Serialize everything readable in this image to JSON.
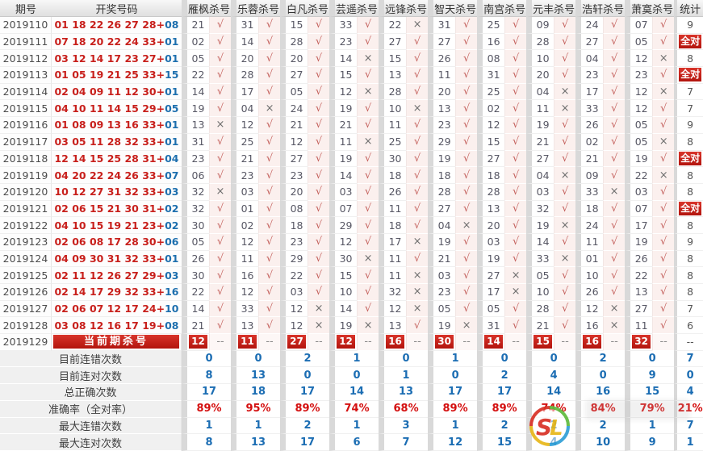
{
  "colors": {
    "accent_red": "#c8201c",
    "accent_blue": "#1b6db3",
    "percent_red": "#d40f0f",
    "check_pink_bg": "#fbf0ee",
    "gutter_gray": "#d9d9d9"
  },
  "marks": {
    "ok": "√",
    "bad": "×",
    "dash": "--",
    "plus": "+"
  },
  "badges": {
    "all_correct": "全对"
  },
  "table": {
    "headers": [
      "期号",
      "开奖号码",
      "雁枫杀号",
      "乐蓉杀号",
      "白凡杀号",
      "芸遥杀号",
      "远锋杀号",
      "智天杀号",
      "南宫杀号",
      "元丰杀号",
      "浩轩杀号",
      "萧寞杀号",
      "统计"
    ],
    "rows": [
      {
        "period": "2019110",
        "draw": {
          "main": "01 18 22 26 27 28",
          "blue": "08"
        },
        "kills": [
          {
            "n": "21",
            "r": "ok"
          },
          {
            "n": "31",
            "r": "ok"
          },
          {
            "n": "15",
            "r": "ok"
          },
          {
            "n": "33",
            "r": "ok"
          },
          {
            "n": "22",
            "r": "bad"
          },
          {
            "n": "31",
            "r": "ok"
          },
          {
            "n": "25",
            "r": "ok"
          },
          {
            "n": "09",
            "r": "ok"
          },
          {
            "n": "24",
            "r": "ok"
          },
          {
            "n": "07",
            "r": "ok"
          }
        ],
        "stat": "9"
      },
      {
        "period": "2019111",
        "draw": {
          "main": "07 18 20 22 24 33",
          "blue": "01"
        },
        "kills": [
          {
            "n": "02",
            "r": "ok"
          },
          {
            "n": "14",
            "r": "ok"
          },
          {
            "n": "28",
            "r": "ok"
          },
          {
            "n": "23",
            "r": "ok"
          },
          {
            "n": "27",
            "r": "ok"
          },
          {
            "n": "27",
            "r": "ok"
          },
          {
            "n": "16",
            "r": "ok"
          },
          {
            "n": "28",
            "r": "ok"
          },
          {
            "n": "27",
            "r": "ok"
          },
          {
            "n": "05",
            "r": "ok"
          }
        ],
        "stat": "全对"
      },
      {
        "period": "2019112",
        "draw": {
          "main": "03 12 14 17 23 27",
          "blue": "01"
        },
        "kills": [
          {
            "n": "05",
            "r": "ok"
          },
          {
            "n": "20",
            "r": "ok"
          },
          {
            "n": "20",
            "r": "ok"
          },
          {
            "n": "14",
            "r": "bad"
          },
          {
            "n": "15",
            "r": "ok"
          },
          {
            "n": "26",
            "r": "ok"
          },
          {
            "n": "08",
            "r": "ok"
          },
          {
            "n": "10",
            "r": "ok"
          },
          {
            "n": "04",
            "r": "ok"
          },
          {
            "n": "12",
            "r": "bad"
          }
        ],
        "stat": "8"
      },
      {
        "period": "2019113",
        "draw": {
          "main": "01 05 19 21 25 33",
          "blue": "15"
        },
        "kills": [
          {
            "n": "22",
            "r": "ok"
          },
          {
            "n": "28",
            "r": "ok"
          },
          {
            "n": "27",
            "r": "ok"
          },
          {
            "n": "15",
            "r": "ok"
          },
          {
            "n": "13",
            "r": "ok"
          },
          {
            "n": "11",
            "r": "ok"
          },
          {
            "n": "31",
            "r": "ok"
          },
          {
            "n": "20",
            "r": "ok"
          },
          {
            "n": "23",
            "r": "ok"
          },
          {
            "n": "23",
            "r": "ok"
          }
        ],
        "stat": "全对"
      },
      {
        "period": "2019114",
        "draw": {
          "main": "02 04 09 11 12 30",
          "blue": "01"
        },
        "kills": [
          {
            "n": "14",
            "r": "ok"
          },
          {
            "n": "17",
            "r": "ok"
          },
          {
            "n": "05",
            "r": "ok"
          },
          {
            "n": "12",
            "r": "bad"
          },
          {
            "n": "28",
            "r": "ok"
          },
          {
            "n": "20",
            "r": "ok"
          },
          {
            "n": "25",
            "r": "ok"
          },
          {
            "n": "04",
            "r": "bad"
          },
          {
            "n": "17",
            "r": "ok"
          },
          {
            "n": "12",
            "r": "bad"
          }
        ],
        "stat": "7"
      },
      {
        "period": "2019115",
        "draw": {
          "main": "04 10 11 14 15 29",
          "blue": "05"
        },
        "kills": [
          {
            "n": "19",
            "r": "ok"
          },
          {
            "n": "04",
            "r": "bad"
          },
          {
            "n": "24",
            "r": "ok"
          },
          {
            "n": "19",
            "r": "ok"
          },
          {
            "n": "10",
            "r": "bad"
          },
          {
            "n": "13",
            "r": "ok"
          },
          {
            "n": "02",
            "r": "ok"
          },
          {
            "n": "11",
            "r": "bad"
          },
          {
            "n": "33",
            "r": "ok"
          },
          {
            "n": "12",
            "r": "ok"
          }
        ],
        "stat": "7"
      },
      {
        "period": "2019116",
        "draw": {
          "main": "01 08 09 13 16 33",
          "blue": "01"
        },
        "kills": [
          {
            "n": "13",
            "r": "bad"
          },
          {
            "n": "12",
            "r": "ok"
          },
          {
            "n": "21",
            "r": "ok"
          },
          {
            "n": "21",
            "r": "ok"
          },
          {
            "n": "11",
            "r": "ok"
          },
          {
            "n": "23",
            "r": "ok"
          },
          {
            "n": "12",
            "r": "ok"
          },
          {
            "n": "19",
            "r": "ok"
          },
          {
            "n": "26",
            "r": "ok"
          },
          {
            "n": "05",
            "r": "ok"
          }
        ],
        "stat": "9"
      },
      {
        "period": "2019117",
        "draw": {
          "main": "03 05 11 28 32 33",
          "blue": "01"
        },
        "kills": [
          {
            "n": "31",
            "r": "ok"
          },
          {
            "n": "25",
            "r": "ok"
          },
          {
            "n": "12",
            "r": "ok"
          },
          {
            "n": "11",
            "r": "bad"
          },
          {
            "n": "25",
            "r": "ok"
          },
          {
            "n": "29",
            "r": "ok"
          },
          {
            "n": "15",
            "r": "ok"
          },
          {
            "n": "21",
            "r": "ok"
          },
          {
            "n": "02",
            "r": "ok"
          },
          {
            "n": "05",
            "r": "bad"
          }
        ],
        "stat": "8"
      },
      {
        "period": "2019118",
        "draw": {
          "main": "12 14 15 25 28 31",
          "blue": "04"
        },
        "kills": [
          {
            "n": "23",
            "r": "ok"
          },
          {
            "n": "21",
            "r": "ok"
          },
          {
            "n": "27",
            "r": "ok"
          },
          {
            "n": "19",
            "r": "ok"
          },
          {
            "n": "30",
            "r": "ok"
          },
          {
            "n": "19",
            "r": "ok"
          },
          {
            "n": "27",
            "r": "ok"
          },
          {
            "n": "27",
            "r": "ok"
          },
          {
            "n": "21",
            "r": "ok"
          },
          {
            "n": "19",
            "r": "ok"
          }
        ],
        "stat": "全对"
      },
      {
        "period": "2019119",
        "draw": {
          "main": "04 20 22 24 26 33",
          "blue": "07"
        },
        "kills": [
          {
            "n": "06",
            "r": "ok"
          },
          {
            "n": "23",
            "r": "ok"
          },
          {
            "n": "23",
            "r": "ok"
          },
          {
            "n": "14",
            "r": "ok"
          },
          {
            "n": "18",
            "r": "ok"
          },
          {
            "n": "18",
            "r": "ok"
          },
          {
            "n": "18",
            "r": "ok"
          },
          {
            "n": "04",
            "r": "bad"
          },
          {
            "n": "09",
            "r": "ok"
          },
          {
            "n": "22",
            "r": "bad"
          }
        ],
        "stat": "8"
      },
      {
        "period": "2019120",
        "draw": {
          "main": "10 12 27 31 32 33",
          "blue": "03"
        },
        "kills": [
          {
            "n": "32",
            "r": "bad"
          },
          {
            "n": "03",
            "r": "ok"
          },
          {
            "n": "20",
            "r": "ok"
          },
          {
            "n": "03",
            "r": "ok"
          },
          {
            "n": "26",
            "r": "ok"
          },
          {
            "n": "28",
            "r": "ok"
          },
          {
            "n": "28",
            "r": "ok"
          },
          {
            "n": "03",
            "r": "ok"
          },
          {
            "n": "33",
            "r": "bad"
          },
          {
            "n": "03",
            "r": "ok"
          }
        ],
        "stat": "8"
      },
      {
        "period": "2019121",
        "draw": {
          "main": "02 06 15 21 30 31",
          "blue": "02"
        },
        "kills": [
          {
            "n": "32",
            "r": "ok"
          },
          {
            "n": "01",
            "r": "ok"
          },
          {
            "n": "08",
            "r": "ok"
          },
          {
            "n": "07",
            "r": "ok"
          },
          {
            "n": "11",
            "r": "ok"
          },
          {
            "n": "27",
            "r": "ok"
          },
          {
            "n": "13",
            "r": "ok"
          },
          {
            "n": "32",
            "r": "ok"
          },
          {
            "n": "18",
            "r": "ok"
          },
          {
            "n": "07",
            "r": "ok"
          }
        ],
        "stat": "全对"
      },
      {
        "period": "2019122",
        "draw": {
          "main": "04 10 15 19 21 23",
          "blue": "02"
        },
        "kills": [
          {
            "n": "30",
            "r": "ok"
          },
          {
            "n": "02",
            "r": "ok"
          },
          {
            "n": "18",
            "r": "ok"
          },
          {
            "n": "29",
            "r": "ok"
          },
          {
            "n": "18",
            "r": "ok"
          },
          {
            "n": "04",
            "r": "bad"
          },
          {
            "n": "20",
            "r": "ok"
          },
          {
            "n": "19",
            "r": "bad"
          },
          {
            "n": "24",
            "r": "ok"
          },
          {
            "n": "17",
            "r": "ok"
          }
        ],
        "stat": "8"
      },
      {
        "period": "2019123",
        "draw": {
          "main": "02 06 08 17 28 30",
          "blue": "06"
        },
        "kills": [
          {
            "n": "05",
            "r": "ok"
          },
          {
            "n": "12",
            "r": "ok"
          },
          {
            "n": "23",
            "r": "ok"
          },
          {
            "n": "12",
            "r": "ok"
          },
          {
            "n": "17",
            "r": "bad"
          },
          {
            "n": "19",
            "r": "ok"
          },
          {
            "n": "03",
            "r": "ok"
          },
          {
            "n": "14",
            "r": "ok"
          },
          {
            "n": "11",
            "r": "ok"
          },
          {
            "n": "19",
            "r": "ok"
          }
        ],
        "stat": "9"
      },
      {
        "period": "2019124",
        "draw": {
          "main": "04 09 30 31 32 33",
          "blue": "01"
        },
        "kills": [
          {
            "n": "26",
            "r": "ok"
          },
          {
            "n": "11",
            "r": "ok"
          },
          {
            "n": "29",
            "r": "ok"
          },
          {
            "n": "30",
            "r": "bad"
          },
          {
            "n": "11",
            "r": "ok"
          },
          {
            "n": "21",
            "r": "ok"
          },
          {
            "n": "19",
            "r": "ok"
          },
          {
            "n": "33",
            "r": "bad"
          },
          {
            "n": "01",
            "r": "ok"
          },
          {
            "n": "26",
            "r": "ok"
          }
        ],
        "stat": "8"
      },
      {
        "period": "2019125",
        "draw": {
          "main": "02 11 12 26 27 29",
          "blue": "03"
        },
        "kills": [
          {
            "n": "30",
            "r": "ok"
          },
          {
            "n": "16",
            "r": "ok"
          },
          {
            "n": "22",
            "r": "ok"
          },
          {
            "n": "15",
            "r": "ok"
          },
          {
            "n": "11",
            "r": "bad"
          },
          {
            "n": "03",
            "r": "ok"
          },
          {
            "n": "27",
            "r": "bad"
          },
          {
            "n": "05",
            "r": "ok"
          },
          {
            "n": "10",
            "r": "ok"
          },
          {
            "n": "22",
            "r": "ok"
          }
        ],
        "stat": "8"
      },
      {
        "period": "2019126",
        "draw": {
          "main": "02 14 17 29 32 33",
          "blue": "16"
        },
        "kills": [
          {
            "n": "22",
            "r": "ok"
          },
          {
            "n": "12",
            "r": "ok"
          },
          {
            "n": "03",
            "r": "ok"
          },
          {
            "n": "10",
            "r": "ok"
          },
          {
            "n": "32",
            "r": "bad"
          },
          {
            "n": "23",
            "r": "ok"
          },
          {
            "n": "17",
            "r": "bad"
          },
          {
            "n": "10",
            "r": "ok"
          },
          {
            "n": "26",
            "r": "ok"
          },
          {
            "n": "13",
            "r": "ok"
          }
        ],
        "stat": "8"
      },
      {
        "period": "2019127",
        "draw": {
          "main": "02 06 07 12 17 24",
          "blue": "10"
        },
        "kills": [
          {
            "n": "14",
            "r": "ok"
          },
          {
            "n": "33",
            "r": "ok"
          },
          {
            "n": "12",
            "r": "bad"
          },
          {
            "n": "14",
            "r": "ok"
          },
          {
            "n": "12",
            "r": "bad"
          },
          {
            "n": "05",
            "r": "ok"
          },
          {
            "n": "05",
            "r": "ok"
          },
          {
            "n": "28",
            "r": "ok"
          },
          {
            "n": "12",
            "r": "bad"
          },
          {
            "n": "27",
            "r": "ok"
          }
        ],
        "stat": "7"
      },
      {
        "period": "2019128",
        "draw": {
          "main": "03 08 12 16 17 19",
          "blue": "08"
        },
        "kills": [
          {
            "n": "21",
            "r": "ok"
          },
          {
            "n": "13",
            "r": "ok"
          },
          {
            "n": "12",
            "r": "bad"
          },
          {
            "n": "19",
            "r": "bad"
          },
          {
            "n": "13",
            "r": "ok"
          },
          {
            "n": "19",
            "r": "bad"
          },
          {
            "n": "31",
            "r": "ok"
          },
          {
            "n": "21",
            "r": "ok"
          },
          {
            "n": "16",
            "r": "bad"
          },
          {
            "n": "11",
            "r": "ok"
          }
        ],
        "stat": "6"
      }
    ],
    "current": {
      "period": "2019129",
      "banner": "当前期杀号",
      "kills": [
        "12",
        "11",
        "27",
        "12",
        "16",
        "30",
        "14",
        "15",
        "16",
        "32"
      ],
      "stat": "--"
    },
    "summary": [
      {
        "label": "目前连错次数",
        "kind": "count",
        "values": [
          "0",
          "0",
          "2",
          "1",
          "0",
          "1",
          "0",
          "0",
          "2",
          "0",
          "7"
        ]
      },
      {
        "label": "目前连对次数",
        "kind": "count",
        "values": [
          "8",
          "13",
          "0",
          "0",
          "1",
          "0",
          "2",
          "4",
          "0",
          "9",
          "0"
        ]
      },
      {
        "label": "总正确次数",
        "kind": "count",
        "values": [
          "17",
          "18",
          "17",
          "14",
          "13",
          "17",
          "17",
          "14",
          "16",
          "15",
          "4"
        ]
      },
      {
        "label": "准确率（全对率）",
        "kind": "percent",
        "values": [
          "89%",
          "95%",
          "89%",
          "74%",
          "68%",
          "89%",
          "89%",
          "74%",
          "84%",
          "79%",
          "21%"
        ]
      },
      {
        "label": "最大连错次数",
        "kind": "count",
        "values": [
          "1",
          "1",
          "2",
          "1",
          "3",
          "1",
          "2",
          "2",
          "2",
          "1",
          "7"
        ]
      },
      {
        "label": "最大连对次数",
        "kind": "count",
        "values": [
          "8",
          "13",
          "17",
          "6",
          "7",
          "12",
          "15",
          "4",
          "10",
          "9",
          "1"
        ]
      }
    ]
  }
}
